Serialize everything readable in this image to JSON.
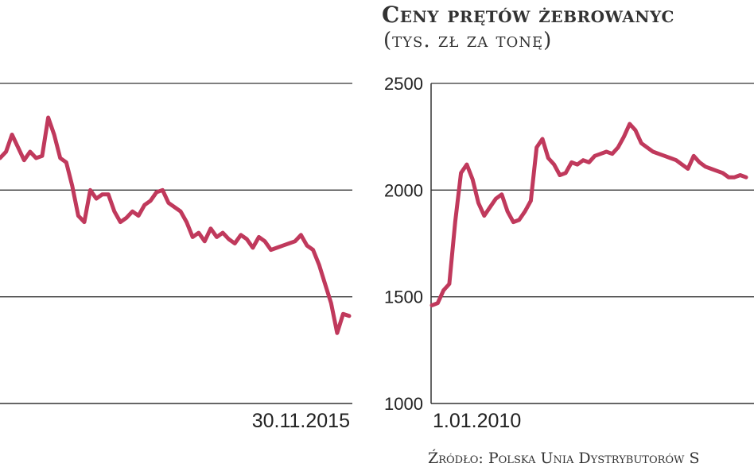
{
  "title": "Ceny prętów żebrowanyc",
  "subtitle": "(tys. zł za tonę)",
  "source": "Źródło: Polska Unia Dystrybutorów S",
  "colors": {
    "line": "#c0395c",
    "grid": "#333333",
    "text": "#222222"
  },
  "chart_data": [
    {
      "type": "line",
      "title": "",
      "x_end_label": "30.11.2015",
      "ylim": [
        1000,
        2500
      ],
      "grid": true,
      "series": [
        {
          "values": [
            2150,
            2180,
            2260,
            2200,
            2140,
            2180,
            2150,
            2160,
            2340,
            2260,
            2150,
            2130,
            2020,
            1880,
            1850,
            2000,
            1960,
            1980,
            1980,
            1900,
            1850,
            1870,
            1900,
            1880,
            1930,
            1950,
            1990,
            2000,
            1940,
            1920,
            1900,
            1850,
            1780,
            1800,
            1760,
            1820,
            1780,
            1800,
            1770,
            1750,
            1790,
            1770,
            1730,
            1780,
            1760,
            1720,
            1730,
            1740,
            1750,
            1760,
            1790,
            1740,
            1720,
            1650,
            1560,
            1470,
            1330,
            1420,
            1410
          ]
        }
      ]
    },
    {
      "type": "line",
      "title": "Ceny prętów żebrowanyc",
      "ylabel": "(tys. zł za tonę)",
      "x_start_label": "1.01.2010",
      "yticks": [
        "1000",
        "1500",
        "2000",
        "2500"
      ],
      "ylim": [
        1000,
        2500
      ],
      "grid": true,
      "series": [
        {
          "values": [
            1460,
            1470,
            1530,
            1560,
            1850,
            2080,
            2120,
            2050,
            1940,
            1880,
            1920,
            1960,
            1980,
            1900,
            1850,
            1860,
            1900,
            1950,
            2200,
            2240,
            2150,
            2120,
            2070,
            2080,
            2130,
            2120,
            2140,
            2130,
            2160,
            2170,
            2180,
            2170,
            2200,
            2250,
            2310,
            2280,
            2220,
            2200,
            2180,
            2170,
            2160,
            2150,
            2140,
            2120,
            2100,
            2160,
            2130,
            2110,
            2100,
            2090,
            2080,
            2060,
            2060,
            2070,
            2060
          ]
        }
      ]
    }
  ]
}
